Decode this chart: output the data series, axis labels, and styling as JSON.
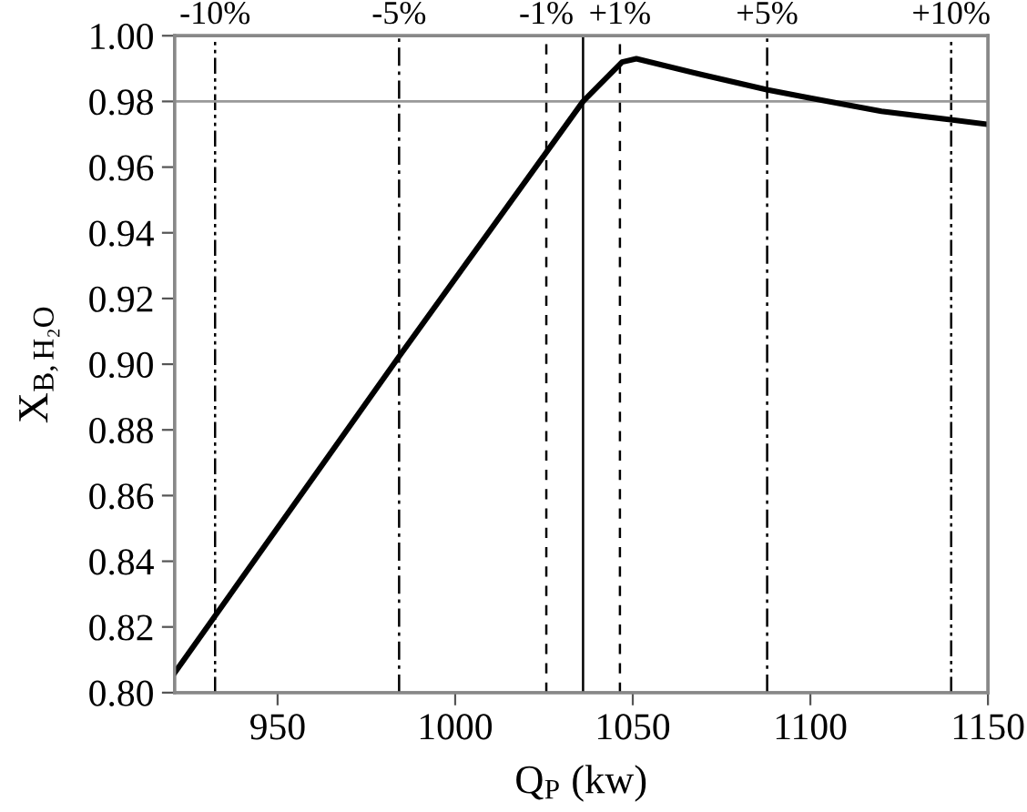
{
  "chart_data": {
    "type": "line",
    "xlabel": "Q$_{P}$ (kw)",
    "ylabel": "X$_{B,H₂O}$",
    "x": [
      921,
      984,
      1036,
      1047,
      1051,
      1070,
      1088,
      1100,
      1120,
      1139,
      1150
    ],
    "series": [
      {
        "color": "#000000",
        "values": [
          0.806,
          0.902,
          0.98,
          0.992,
          0.993,
          0.988,
          0.9835,
          0.981,
          0.977,
          0.9745,
          0.973
        ]
      }
    ],
    "xlim": [
      921,
      1150
    ],
    "xticks": [
      950,
      1000,
      1050,
      1100,
      1150
    ],
    "x2lim": [
      -11.1,
      11.0
    ],
    "x2ticks": [
      {
        "value": -10,
        "label": "-10%"
      },
      {
        "value": -5,
        "label": "-5%"
      },
      {
        "value": -1,
        "label": "-1%"
      },
      {
        "value": 1,
        "label": "+1%"
      },
      {
        "value": 5,
        "label": "+5%"
      },
      {
        "value": 10,
        "label": "+10%"
      }
    ],
    "ylim": [
      0.8,
      1.0
    ],
    "yticks": [
      {
        "value": 0.8,
        "label": "0.80"
      },
      {
        "value": 0.82,
        "label": "0.82"
      },
      {
        "value": 0.84,
        "label": "0.84"
      },
      {
        "value": 0.86,
        "label": "0.86"
      },
      {
        "value": 0.88,
        "label": "0.88"
      },
      {
        "value": 0.9,
        "label": "0.90"
      },
      {
        "value": 0.92,
        "label": "0.92"
      },
      {
        "value": 0.94,
        "label": "0.94"
      },
      {
        "value": 0.96,
        "label": "0.96"
      },
      {
        "value": 0.98,
        "label": "0.98"
      },
      {
        "value": 1.0,
        "label": "1.00"
      }
    ],
    "ref_lines": [
      {
        "axis": "x2",
        "value": -10,
        "line_style": "dashdotdot",
        "color": "#000000"
      },
      {
        "axis": "x2",
        "value": -5,
        "line_style": "dashdot",
        "color": "#000000"
      },
      {
        "axis": "x2",
        "value": -1,
        "line_style": "dashed",
        "color": "#000000"
      },
      {
        "axis": "x",
        "value": 1036,
        "line_style": "solid",
        "color": "#000000"
      },
      {
        "axis": "x2",
        "value": 1,
        "line_style": "dashed",
        "color": "#000000"
      },
      {
        "axis": "x2",
        "value": 5,
        "line_style": "dashdot",
        "color": "#000000"
      },
      {
        "axis": "x2",
        "value": 10,
        "line_style": "dashdotdot",
        "color": "#000000"
      },
      {
        "axis": "y",
        "value": 0.98,
        "line_style": "solid",
        "color": "#999999"
      }
    ],
    "grid": false
  }
}
